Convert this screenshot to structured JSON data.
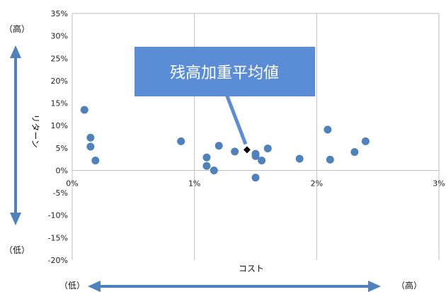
{
  "chart_data": {
    "type": "scatter",
    "xlabel": "コスト",
    "ylabel": "リターン",
    "xlim": [
      0,
      3
    ],
    "ylim": [
      -20,
      35
    ],
    "x_ticks": [
      "0%",
      "1%",
      "2%",
      "3%"
    ],
    "y_ticks": [
      "35%",
      "30%",
      "25%",
      "20%",
      "15%",
      "10%",
      "5%",
      "0%",
      "-5%",
      "-10%",
      "-15%",
      "-20%"
    ],
    "grid": "vertical",
    "series": [
      {
        "points": [
          {
            "x": 0.1,
            "y": 13.5
          },
          {
            "x": 0.15,
            "y": 7.3
          },
          {
            "x": 0.15,
            "y": 5.3
          },
          {
            "x": 0.19,
            "y": 2.2
          },
          {
            "x": 0.89,
            "y": 6.5
          },
          {
            "x": 1.1,
            "y": 2.9
          },
          {
            "x": 1.1,
            "y": 1.0
          },
          {
            "x": 1.16,
            "y": 0.0
          },
          {
            "x": 1.2,
            "y": 5.5
          },
          {
            "x": 1.33,
            "y": 4.2
          },
          {
            "x": 1.5,
            "y": 3.7
          },
          {
            "x": 1.5,
            "y": 3.2
          },
          {
            "x": 1.5,
            "y": -1.6
          },
          {
            "x": 1.55,
            "y": 2.2
          },
          {
            "x": 1.6,
            "y": 4.9
          },
          {
            "x": 1.86,
            "y": 2.6
          },
          {
            "x": 2.09,
            "y": 9.1
          },
          {
            "x": 2.11,
            "y": 2.4
          },
          {
            "x": 2.31,
            "y": 4.1
          },
          {
            "x": 2.4,
            "y": 6.5
          }
        ]
      }
    ],
    "weighted_average": {
      "label": "残高加重平均値",
      "x": 1.43,
      "y": 4.6
    }
  },
  "labels": {
    "high": "（高）",
    "low": "（低）"
  },
  "colors": {
    "marker": "#4f81bd",
    "arrow": "#4f81bd",
    "callout": "#5b8dd6",
    "grid": "#bfbfbf"
  }
}
